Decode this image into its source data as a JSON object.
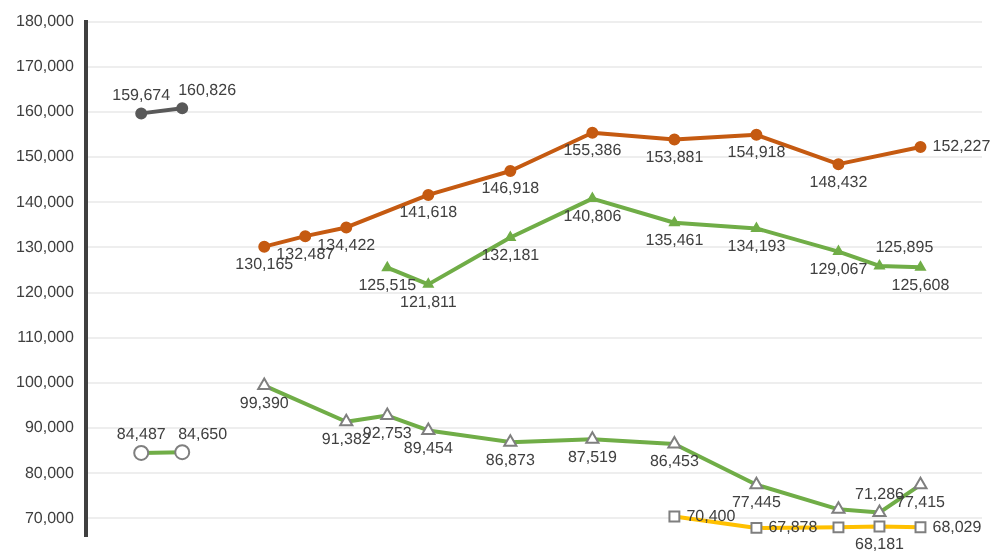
{
  "chart_data": {
    "type": "line",
    "categories": [
      null,
      null,
      null,
      null,
      null,
      null,
      null,
      null,
      null,
      null,
      null,
      null,
      null,
      null,
      null,
      null,
      null,
      null,
      null,
      null
    ],
    "ylim": [
      66000,
      180000
    ],
    "yticks": [
      {
        "value": 70000,
        "label": "70,000"
      },
      {
        "value": 80000,
        "label": "80,000"
      },
      {
        "value": 90000,
        "label": "90,000"
      },
      {
        "value": 100000,
        "label": "100,000"
      },
      {
        "value": 110000,
        "label": "110,000"
      },
      {
        "value": 120000,
        "label": "120,000"
      },
      {
        "value": 130000,
        "label": "130,000"
      },
      {
        "value": 140000,
        "label": "140,000"
      },
      {
        "value": 150000,
        "label": "150,000"
      },
      {
        "value": 160000,
        "label": "160,000"
      },
      {
        "value": 170000,
        "label": "170,000"
      },
      {
        "value": 180000,
        "label": "180,000"
      }
    ],
    "grid": "y",
    "legend": false,
    "tick_labels": "y",
    "series": [
      {
        "color": "#595959",
        "marker": "circle",
        "values": [
          159674,
          160826,
          null,
          null,
          null,
          null,
          null,
          null,
          null,
          null,
          null,
          null,
          null,
          null,
          null,
          null,
          null,
          null,
          null,
          null
        ],
        "value_labels": [
          "159,674",
          "160,826",
          null,
          null,
          null,
          null,
          null,
          null,
          null,
          null,
          null,
          null,
          null,
          null,
          null,
          null,
          null,
          null,
          null,
          null
        ]
      },
      {
        "color": "#c55a11",
        "marker": "circle",
        "values": [
          null,
          null,
          null,
          130165,
          132487,
          134422,
          null,
          141618,
          null,
          146918,
          null,
          155386,
          null,
          153881,
          null,
          154918,
          null,
          148432,
          null,
          152227
        ],
        "value_labels": [
          null,
          null,
          null,
          "130,165",
          "132,487",
          "134,422",
          null,
          "141,618",
          null,
          "146,918",
          null,
          "155,386",
          null,
          "153,881",
          null,
          "154,918",
          null,
          "148,432",
          null,
          "152,227"
        ]
      },
      {
        "color": "#70ad47",
        "marker": "triangle",
        "values": [
          null,
          null,
          null,
          null,
          null,
          null,
          125515,
          121811,
          null,
          132181,
          null,
          140806,
          null,
          135461,
          null,
          134193,
          null,
          129067,
          125895,
          125608
        ],
        "value_labels": [
          null,
          null,
          null,
          null,
          null,
          null,
          "125,515",
          "121,811",
          null,
          "132,181",
          null,
          "140,806",
          null,
          "135,461",
          null,
          "134,193",
          null,
          "129,067",
          "125,895",
          "125,608"
        ]
      },
      {
        "color": "#70ad47",
        "marker": "circle",
        "values": [
          84487,
          84650,
          null,
          null,
          null,
          null,
          null,
          null,
          null,
          null,
          null,
          null,
          null,
          null,
          null,
          null,
          null,
          null,
          null,
          null
        ],
        "value_labels": [
          "84,487",
          "84,650",
          null,
          null,
          null,
          null,
          null,
          null,
          null,
          null,
          null,
          null,
          null,
          null,
          null,
          null,
          null,
          null,
          null,
          null
        ]
      },
      {
        "color": "#70ad47",
        "marker": "triangle",
        "values": [
          null,
          null,
          null,
          99390,
          null,
          91382,
          92753,
          89454,
          null,
          86873,
          null,
          87519,
          null,
          86453,
          null,
          77445,
          null,
          72000,
          71286,
          77415
        ],
        "value_labels": [
          null,
          null,
          null,
          "99,390",
          null,
          "91,382",
          "92,753",
          "89,454",
          null,
          "86,873",
          null,
          "87,519",
          null,
          "86,453",
          null,
          "77,445",
          null,
          null,
          "71,286",
          "77,415"
        ]
      },
      {
        "color": "#ffc000",
        "marker": "square",
        "values": [
          null,
          null,
          null,
          null,
          null,
          null,
          null,
          null,
          null,
          null,
          null,
          null,
          null,
          70400,
          null,
          67878,
          null,
          68000,
          68181,
          68029
        ],
        "value_labels": [
          null,
          null,
          null,
          null,
          null,
          null,
          null,
          null,
          null,
          null,
          null,
          null,
          null,
          "70,400",
          null,
          "67,878",
          null,
          null,
          "68,181",
          "68,029"
        ]
      }
    ]
  }
}
